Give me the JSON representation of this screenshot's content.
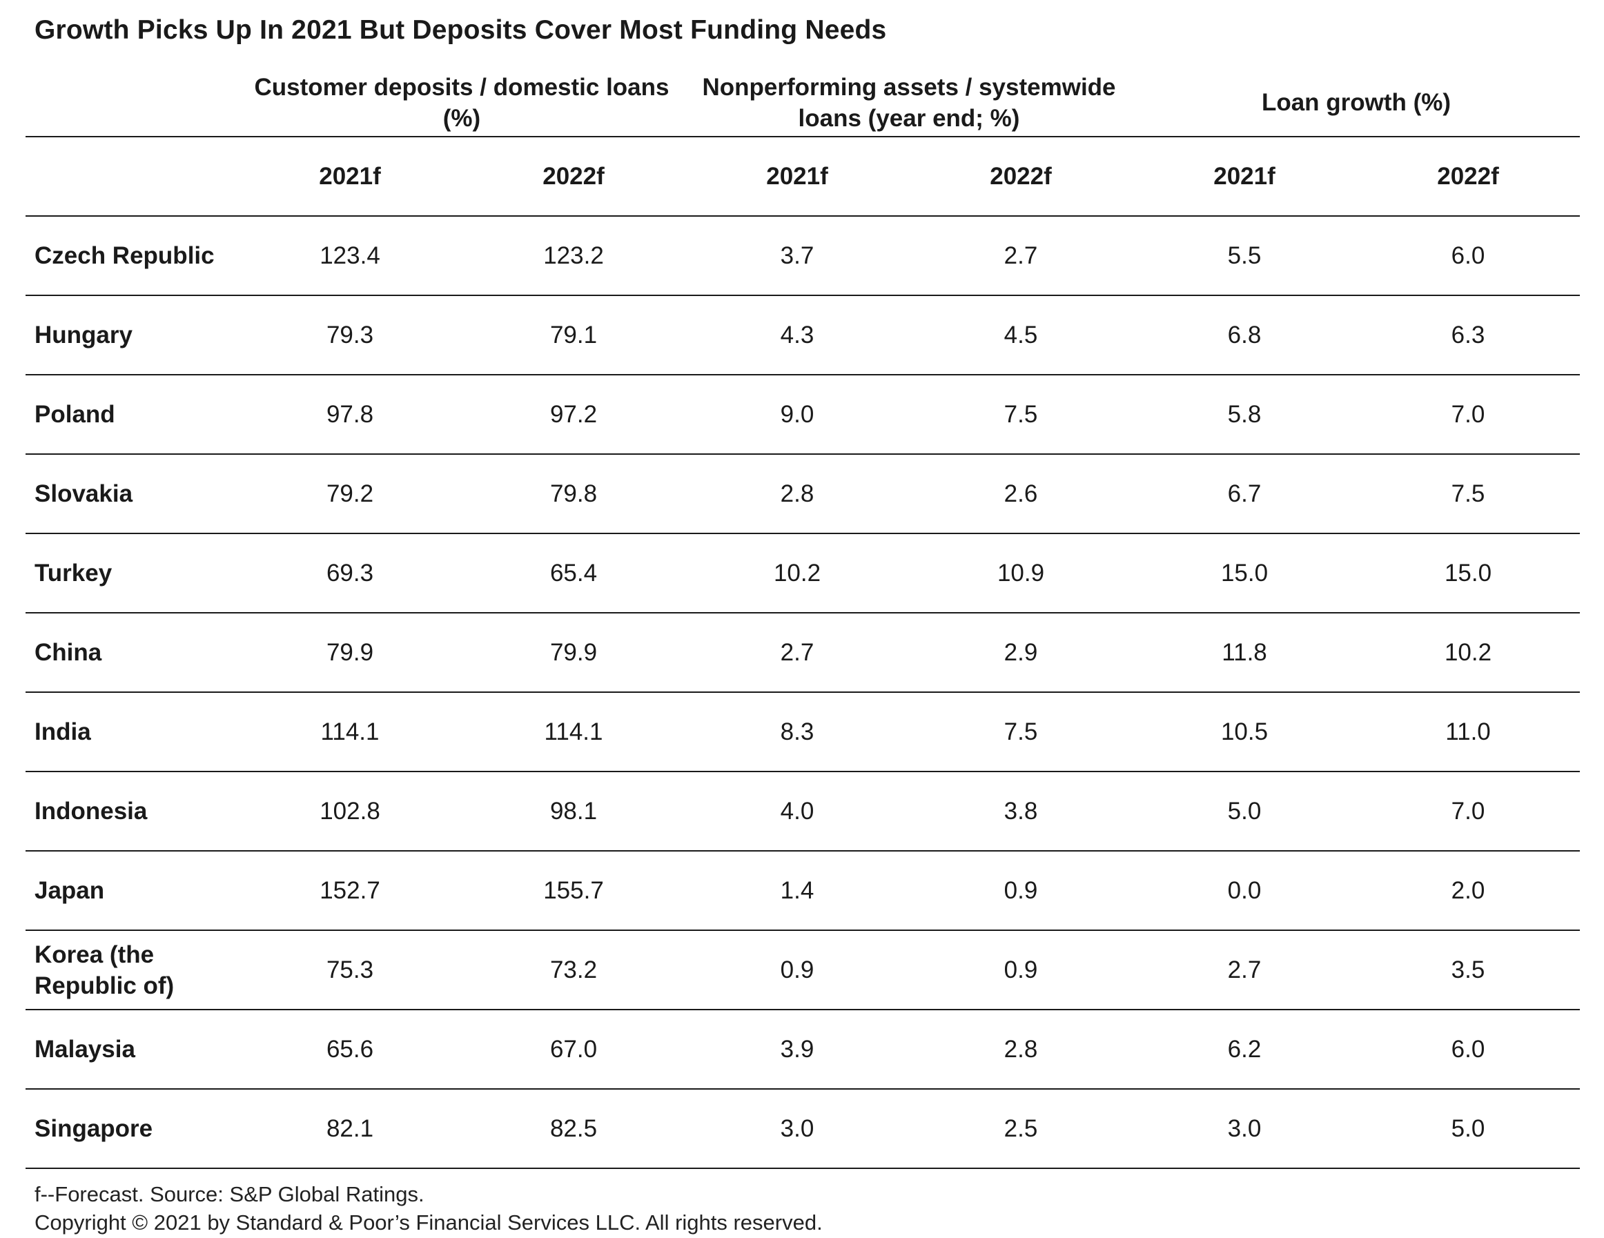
{
  "chart_data": {
    "type": "table",
    "title": "Growth Picks Up In 2021 But Deposits Cover Most Funding Needs",
    "column_groups": [
      {
        "label": "Customer deposits / domestic loans (%)",
        "columns": [
          "2021f",
          "2022f"
        ]
      },
      {
        "label": "Nonperforming assets / systemwide loans (year end; %)",
        "columns": [
          "2021f",
          "2022f"
        ]
      },
      {
        "label": "Loan growth (%)",
        "columns": [
          "2021f",
          "2022f"
        ]
      }
    ],
    "rows": [
      {
        "country": "Czech Republic",
        "values": [
          "123.4",
          "123.2",
          "3.7",
          "2.7",
          "5.5",
          "6.0"
        ]
      },
      {
        "country": "Hungary",
        "values": [
          "79.3",
          "79.1",
          "4.3",
          "4.5",
          "6.8",
          "6.3"
        ]
      },
      {
        "country": "Poland",
        "values": [
          "97.8",
          "97.2",
          "9.0",
          "7.5",
          "5.8",
          "7.0"
        ]
      },
      {
        "country": "Slovakia",
        "values": [
          "79.2",
          "79.8",
          "2.8",
          "2.6",
          "6.7",
          "7.5"
        ]
      },
      {
        "country": "Turkey",
        "values": [
          "69.3",
          "65.4",
          "10.2",
          "10.9",
          "15.0",
          "15.0"
        ]
      },
      {
        "country": "China",
        "values": [
          "79.9",
          "79.9",
          "2.7",
          "2.9",
          "11.8",
          "10.2"
        ]
      },
      {
        "country": "India",
        "values": [
          "114.1",
          "114.1",
          "8.3",
          "7.5",
          "10.5",
          "11.0"
        ]
      },
      {
        "country": "Indonesia",
        "values": [
          "102.8",
          "98.1",
          "4.0",
          "3.8",
          "5.0",
          "7.0"
        ]
      },
      {
        "country": "Japan",
        "values": [
          "152.7",
          "155.7",
          "1.4",
          "0.9",
          "0.0",
          "2.0"
        ]
      },
      {
        "country": "Korea (the Republic of)",
        "values": [
          "75.3",
          "73.2",
          "0.9",
          "0.9",
          "2.7",
          "3.5"
        ]
      },
      {
        "country": "Malaysia",
        "values": [
          "65.6",
          "67.0",
          "3.9",
          "2.8",
          "6.2",
          "6.0"
        ]
      },
      {
        "country": "Singapore",
        "values": [
          "82.1",
          "82.5",
          "3.0",
          "2.5",
          "3.0",
          "5.0"
        ]
      }
    ],
    "footnote": "f--Forecast. Source: S&P Global Ratings.",
    "copyright": "Copyright © 2021 by Standard & Poor’s Financial Services LLC. All rights reserved."
  }
}
